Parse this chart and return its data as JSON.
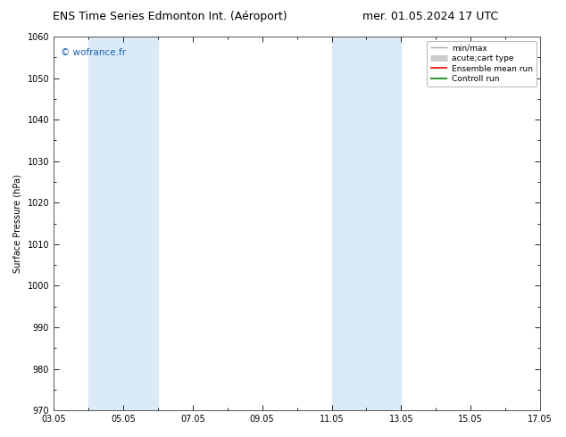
{
  "title_left": "ENS Time Series Edmonton Int. (Aéroport)",
  "title_right": "mer. 01.05.2024 17 UTC",
  "ylabel": "Surface Pressure (hPa)",
  "watermark": "© wofrance.fr",
  "ylim": [
    970,
    1060
  ],
  "yticks": [
    970,
    980,
    990,
    1000,
    1010,
    1020,
    1030,
    1040,
    1050,
    1060
  ],
  "xtick_labels": [
    "03.05",
    "05.05",
    "07.05",
    "09.05",
    "11.05",
    "13.05",
    "15.05",
    "17.05"
  ],
  "xtick_positions": [
    0,
    2,
    4,
    6,
    8,
    10,
    12,
    14
  ],
  "x_total_days": 14,
  "shaded_bands": [
    {
      "x_start": 1.0,
      "x_end": 3.0,
      "color": "#daeaf7"
    },
    {
      "x_start": 8.0,
      "x_end": 10.0,
      "color": "#daeaf7"
    }
  ],
  "legend_items": [
    {
      "label": "min/max",
      "color": "#aaaaaa",
      "linestyle": "-",
      "linewidth": 1.0
    },
    {
      "label": "acute;cart type",
      "color": "#cccccc",
      "linestyle": "-",
      "linewidth": 5
    },
    {
      "label": "Ensemble mean run",
      "color": "#ff0000",
      "linestyle": "-",
      "linewidth": 1.2
    },
    {
      "label": "Controll run",
      "color": "#008000",
      "linestyle": "-",
      "linewidth": 1.2
    }
  ],
  "background_color": "#ffffff",
  "spine_color": "#555555",
  "title_fontsize": 9,
  "axis_label_fontsize": 7,
  "tick_fontsize": 7,
  "legend_fontsize": 6.5,
  "watermark_color": "#1a5fb4",
  "watermark_fontsize": 7.5
}
